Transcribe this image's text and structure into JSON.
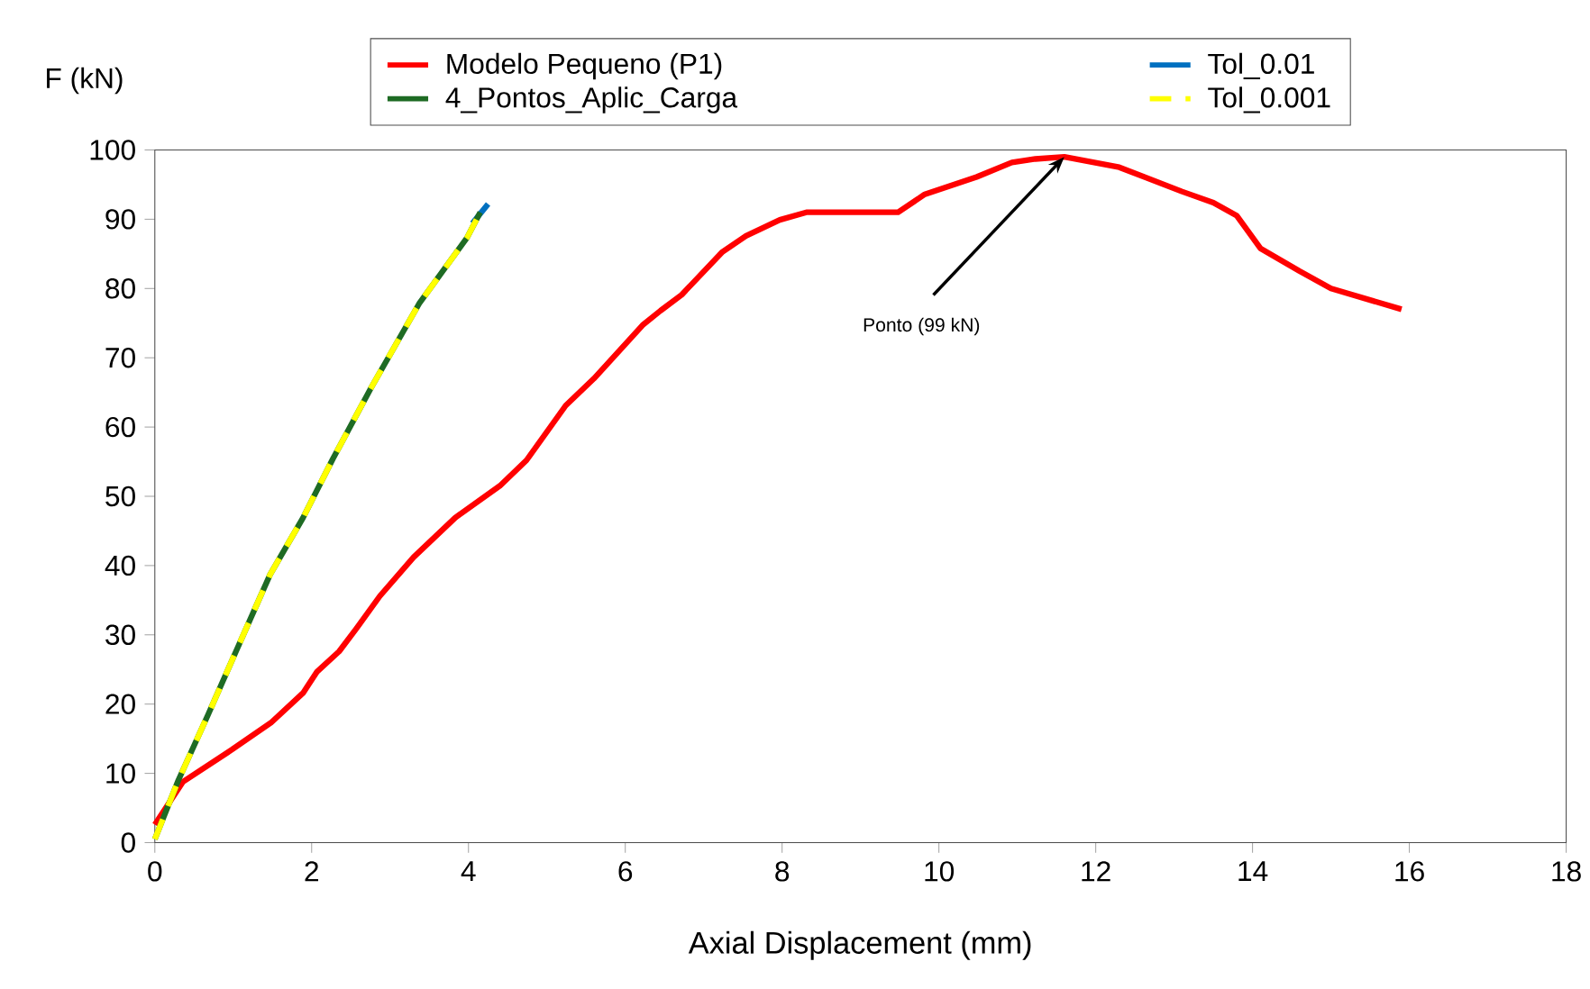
{
  "chart_data": {
    "type": "line",
    "xlabel": "Axial Displacement (mm)",
    "ylabel": "F (kN)",
    "xlim": [
      0,
      18
    ],
    "ylim": [
      0,
      100
    ],
    "xticks": [
      0,
      2,
      4,
      6,
      8,
      10,
      12,
      14,
      16,
      18
    ],
    "yticks": [
      0,
      10,
      20,
      30,
      40,
      50,
      60,
      70,
      80,
      90,
      100
    ],
    "grid": false,
    "legend": "top",
    "line_style": "solid",
    "marker": "none",
    "annotations": [
      {
        "text": "Ponto (99 kN)",
        "x": 11.6,
        "y": 99
      }
    ],
    "series": [
      {
        "name": "Modelo Pequeno (P1)",
        "color": "#ff0000",
        "x": [
          0,
          0.36,
          0.98,
          1.48,
          1.89,
          2.07,
          2.35,
          2.57,
          2.87,
          3.3,
          3.83,
          4.4,
          4.74,
          5.24,
          5.6,
          6.22,
          6.45,
          6.72,
          7.24,
          7.54,
          7.97,
          8.31,
          9.48,
          9.82,
          10.48,
          10.93,
          11.23,
          11.6,
          12.3,
          13.1,
          13.5,
          13.8,
          14.1,
          14.6,
          15.0,
          15.9
        ],
        "values": [
          2.6,
          8.8,
          13.4,
          17.3,
          21.6,
          24.7,
          27.6,
          30.9,
          35.6,
          41.2,
          46.9,
          51.5,
          55.2,
          63.1,
          67,
          74.7,
          76.8,
          79.1,
          85.3,
          87.6,
          89.9,
          91,
          91,
          93.6,
          96.1,
          98.2,
          98.7,
          99,
          97.5,
          94,
          92.4,
          90.5,
          85.8,
          82.5,
          80,
          77
        ]
      },
      {
        "name": "Tol_0.01",
        "color": "#0070c0",
        "x": [
          4.05,
          4.25
        ],
        "values": [
          89.4,
          92.2
        ]
      },
      {
        "name": "4_Pontos_Aplic_Carga",
        "color": "#1e6b24",
        "x": [
          0,
          0.3,
          0.68,
          1.05,
          1.47,
          1.89,
          2.27,
          2.76,
          3.37,
          3.98,
          4.15
        ],
        "values": [
          0.5,
          9,
          18.5,
          28,
          38.7,
          46.9,
          55.4,
          65.7,
          77.8,
          87.3,
          91
        ]
      },
      {
        "name": "Tol_0.001",
        "color": "#ffff00",
        "line_style": "dashed",
        "x": [
          0,
          0.3,
          0.68,
          1.05,
          1.47,
          1.89,
          2.27,
          2.76,
          3.37,
          3.98,
          4.15
        ],
        "values": [
          0.5,
          9,
          18.5,
          28,
          38.7,
          46.9,
          55.4,
          65.7,
          77.8,
          87.3,
          91
        ]
      }
    ]
  }
}
